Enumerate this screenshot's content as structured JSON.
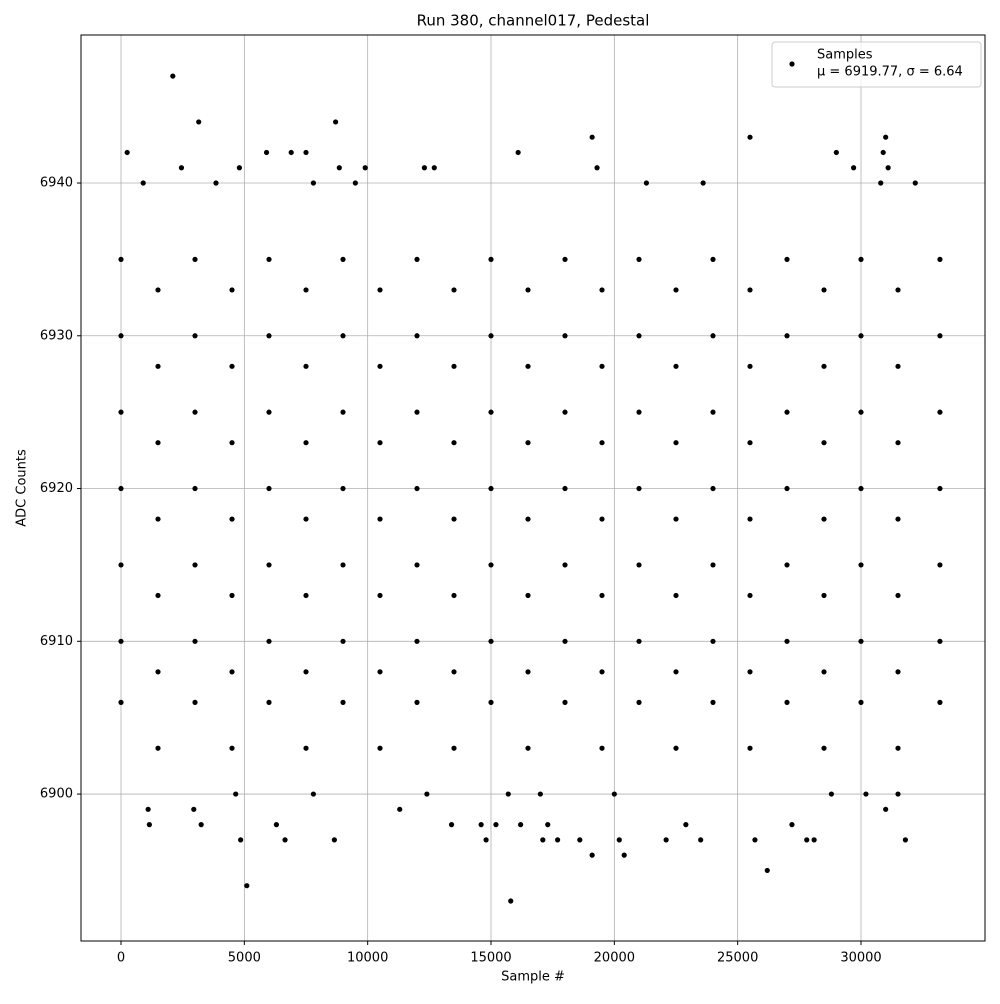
{
  "chart_data": {
    "type": "scatter",
    "title": "Run 380, channel017, Pedestal",
    "x_label": "Sample #",
    "y_label": "ADC Counts",
    "xlim": [
      -1622,
      35027
    ],
    "ylim": [
      6890.38,
      6949.69
    ],
    "xticks": [
      0,
      5000,
      10000,
      15000,
      20000,
      25000,
      30000
    ],
    "yticks": [
      6900,
      6910,
      6920,
      6930,
      6940
    ],
    "grid": true,
    "legend_position": "upper right",
    "legend_stats": "μ = 6919.77, σ = 6.64",
    "x": [
      0,
      0,
      0,
      0,
      0,
      0,
      0,
      1500,
      1500,
      1500,
      1500,
      1500,
      1500,
      1500,
      3000,
      3000,
      3000,
      3000,
      3000,
      3000,
      3000,
      4500,
      4500,
      4500,
      4500,
      4500,
      4500,
      4500,
      6000,
      6000,
      6000,
      6000,
      6000,
      6000,
      6000,
      7500,
      7500,
      7500,
      7500,
      7500,
      7500,
      7500,
      9000,
      9000,
      9000,
      9000,
      9000,
      9000,
      9000,
      10500,
      10500,
      10500,
      10500,
      10500,
      10500,
      10500,
      12000,
      12000,
      12000,
      12000,
      12000,
      12000,
      12000,
      13500,
      13500,
      13500,
      13500,
      13500,
      13500,
      13500,
      15000,
      15000,
      15000,
      15000,
      15000,
      15000,
      15000,
      16500,
      16500,
      16500,
      16500,
      16500,
      16500,
      16500,
      18000,
      18000,
      18000,
      18000,
      18000,
      18000,
      18000,
      19500,
      19500,
      19500,
      19500,
      19500,
      19500,
      19500,
      21000,
      21000,
      21000,
      21000,
      21000,
      21000,
      21000,
      22500,
      22500,
      22500,
      22500,
      22500,
      22500,
      22500,
      24000,
      24000,
      24000,
      24000,
      24000,
      24000,
      24000,
      25500,
      25500,
      25500,
      25500,
      25500,
      25500,
      25500,
      27000,
      27000,
      27000,
      27000,
      27000,
      27000,
      27000,
      28500,
      28500,
      28500,
      28500,
      28500,
      28500,
      28500,
      30000,
      30000,
      30000,
      30000,
      30000,
      30000,
      30000,
      31500,
      31500,
      31500,
      31500,
      31500,
      31500,
      31500,
      33200,
      33200,
      33200,
      33200,
      33200,
      33200,
      33200,
      2100,
      3150,
      8700,
      250,
      5900,
      6900,
      7500,
      16100,
      19100,
      25500,
      31000,
      30900,
      29000,
      2450,
      4800,
      8850,
      9900,
      12300,
      12700,
      19300,
      29700,
      31100,
      900,
      3850,
      7800,
      9500,
      21300,
      23600,
      30800,
      32200,
      5100,
      15800,
      26200,
      19100,
      20400,
      4850,
      6650,
      8650,
      14800,
      17100,
      17700,
      18600,
      20200,
      22100,
      23500,
      25700,
      27800,
      28100,
      31800,
      1150,
      3250,
      6300,
      13400,
      14600,
      15200,
      16200,
      17300,
      22900,
      27200,
      1100,
      2950,
      11300,
      31000,
      7800,
      4650,
      12400,
      30200,
      31500,
      28800,
      17000,
      20000,
      15700
    ],
    "series": [
      {
        "name": "Samples",
        "color": "#000000",
        "values": [
          6906,
          6910,
          6915,
          6920,
          6925,
          6930,
          6935,
          6903,
          6908,
          6913,
          6918,
          6923,
          6928,
          6933,
          6906,
          6910,
          6915,
          6920,
          6925,
          6930,
          6935,
          6903,
          6908,
          6913,
          6918,
          6923,
          6928,
          6933,
          6906,
          6910,
          6915,
          6920,
          6925,
          6930,
          6935,
          6903,
          6908,
          6913,
          6918,
          6923,
          6928,
          6933,
          6906,
          6910,
          6915,
          6920,
          6925,
          6930,
          6935,
          6903,
          6908,
          6913,
          6918,
          6923,
          6928,
          6933,
          6906,
          6910,
          6915,
          6920,
          6925,
          6930,
          6935,
          6903,
          6908,
          6913,
          6918,
          6923,
          6928,
          6933,
          6906,
          6910,
          6915,
          6920,
          6925,
          6930,
          6935,
          6903,
          6908,
          6913,
          6918,
          6923,
          6928,
          6933,
          6906,
          6910,
          6915,
          6920,
          6925,
          6930,
          6935,
          6903,
          6908,
          6913,
          6918,
          6923,
          6928,
          6933,
          6906,
          6910,
          6915,
          6920,
          6925,
          6930,
          6935,
          6903,
          6908,
          6913,
          6918,
          6923,
          6928,
          6933,
          6906,
          6910,
          6915,
          6920,
          6925,
          6930,
          6935,
          6903,
          6908,
          6913,
          6918,
          6923,
          6928,
          6933,
          6906,
          6910,
          6915,
          6920,
          6925,
          6930,
          6935,
          6903,
          6908,
          6913,
          6918,
          6923,
          6928,
          6933,
          6906,
          6910,
          6915,
          6920,
          6925,
          6930,
          6935,
          6903,
          6908,
          6913,
          6918,
          6923,
          6928,
          6933,
          6906,
          6910,
          6915,
          6920,
          6925,
          6930,
          6935,
          6947,
          6944,
          6944,
          6942,
          6942,
          6942,
          6942,
          6942,
          6943,
          6943,
          6943,
          6942,
          6942,
          6941,
          6941,
          6941,
          6941,
          6941,
          6941,
          6941,
          6941,
          6941,
          6940,
          6940,
          6940,
          6940,
          6940,
          6940,
          6940,
          6940,
          6894,
          6893,
          6895,
          6896,
          6896,
          6897,
          6897,
          6897,
          6897,
          6897,
          6897,
          6897,
          6897,
          6897,
          6897,
          6897,
          6897,
          6897,
          6897,
          6898,
          6898,
          6898,
          6898,
          6898,
          6898,
          6898,
          6898,
          6898,
          6898,
          6899,
          6899,
          6899,
          6899,
          6900,
          6900,
          6900,
          6900,
          6900,
          6900,
          6900,
          6900,
          6900
        ]
      }
    ]
  }
}
